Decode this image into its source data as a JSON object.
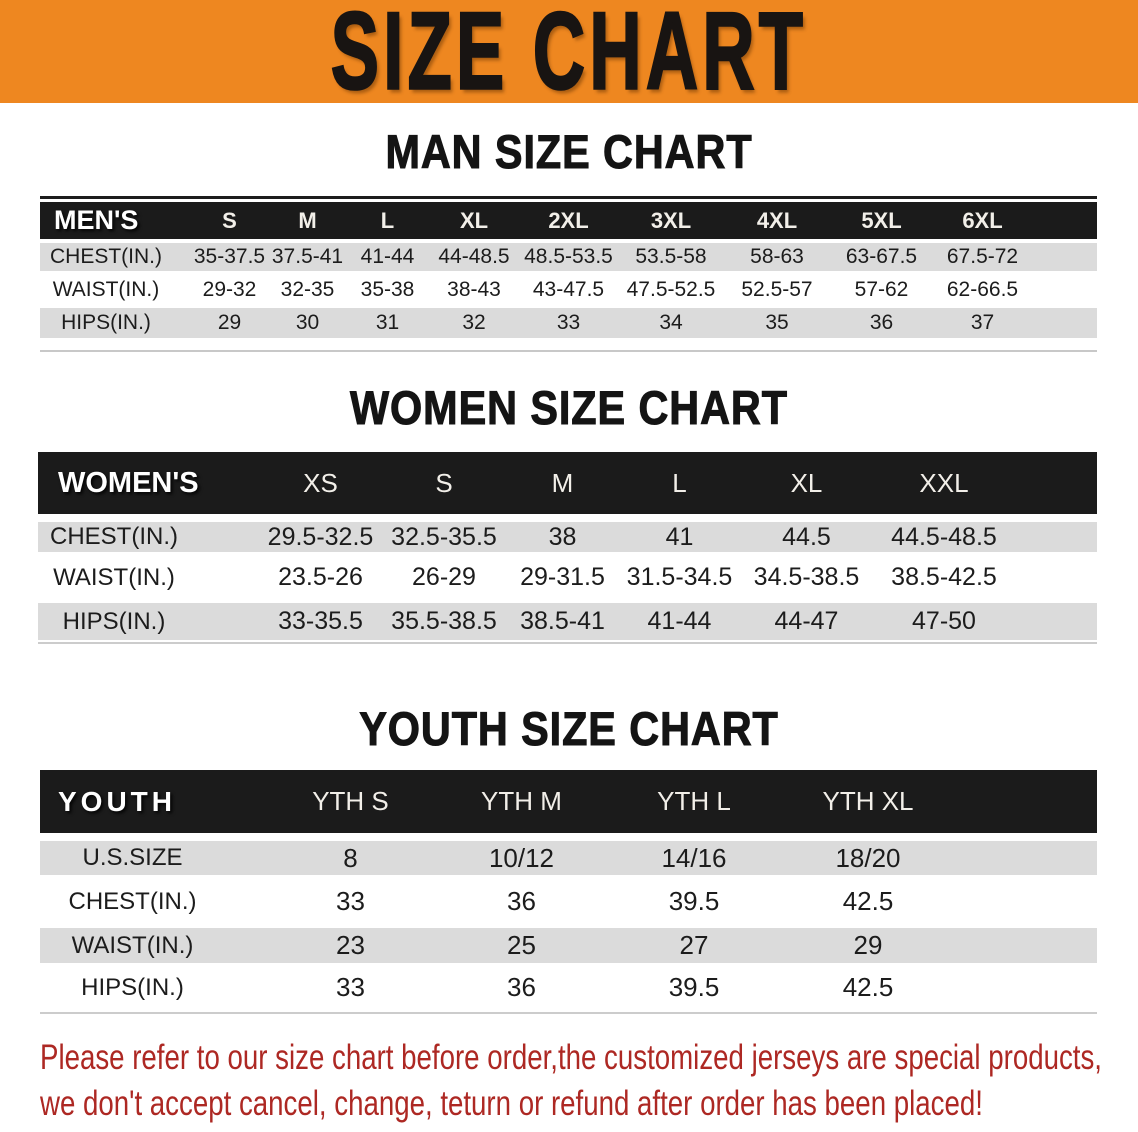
{
  "banner": {
    "title": "SIZE CHART"
  },
  "sections": [
    {
      "heading": "MAN SIZE CHART",
      "group_label": "MEN'S",
      "columns": [
        "S",
        "M",
        "L",
        "XL",
        "2XL",
        "3XL",
        "4XL",
        "5XL",
        "6XL"
      ],
      "rows": [
        {
          "label": "CHEST(IN.)",
          "values": [
            "35-37.5",
            "37.5-41",
            "41-44",
            "44-48.5",
            "48.5-53.5",
            "53.5-58",
            "58-63",
            "63-67.5",
            "67.5-72"
          ]
        },
        {
          "label": "WAIST(IN.)",
          "values": [
            "29-32",
            "32-35",
            "35-38",
            "38-43",
            "43-47.5",
            "47.5-52.5",
            "52.5-57",
            "57-62",
            "62-66.5"
          ]
        },
        {
          "label": "HIPS(IN.)",
          "values": [
            "29",
            "30",
            "31",
            "32",
            "33",
            "34",
            "35",
            "36",
            "37"
          ]
        }
      ]
    },
    {
      "heading": "WOMEN SIZE CHART",
      "group_label": "WOMEN'S",
      "columns": [
        "XS",
        "S",
        "M",
        "L",
        "XL",
        "XXL"
      ],
      "rows": [
        {
          "label": "CHEST(IN.)",
          "values": [
            "29.5-32.5",
            "32.5-35.5",
            "38",
            "41",
            "44.5",
            "44.5-48.5"
          ]
        },
        {
          "label": "WAIST(IN.)",
          "values": [
            "23.5-26",
            "26-29",
            "29-31.5",
            "31.5-34.5",
            "34.5-38.5",
            "38.5-42.5"
          ]
        },
        {
          "label": "HIPS(IN.)",
          "values": [
            "33-35.5",
            "35.5-38.5",
            "38.5-41",
            "41-44",
            "44-47",
            "47-50"
          ]
        }
      ]
    },
    {
      "heading": "YOUTH SIZE CHART",
      "group_label": "YOUTH",
      "columns": [
        "YTH S",
        "YTH M",
        "YTH L",
        "YTH XL"
      ],
      "rows": [
        {
          "label": "U.S.SIZE",
          "values": [
            "8",
            "10/12",
            "14/16",
            "18/20"
          ]
        },
        {
          "label": "CHEST(IN.)",
          "values": [
            "33",
            "36",
            "39.5",
            "42.5"
          ]
        },
        {
          "label": "WAIST(IN.)",
          "values": [
            "23",
            "25",
            "27",
            "29"
          ]
        },
        {
          "label": "HIPS(IN.)",
          "values": [
            "33",
            "36",
            "39.5",
            "42.5"
          ]
        }
      ]
    }
  ],
  "footer": {
    "lines": [
      "Please refer to our size chart before order,the customized jerseys are special products,",
      "we don't accept cancel, change, teturn or refund after order has been placed!"
    ]
  },
  "colors": {
    "banner_bg": "#ee8720",
    "header_bar": "#1b1b1b",
    "row_gray": "#dbdbdb",
    "footer_red": "#ad2823"
  }
}
